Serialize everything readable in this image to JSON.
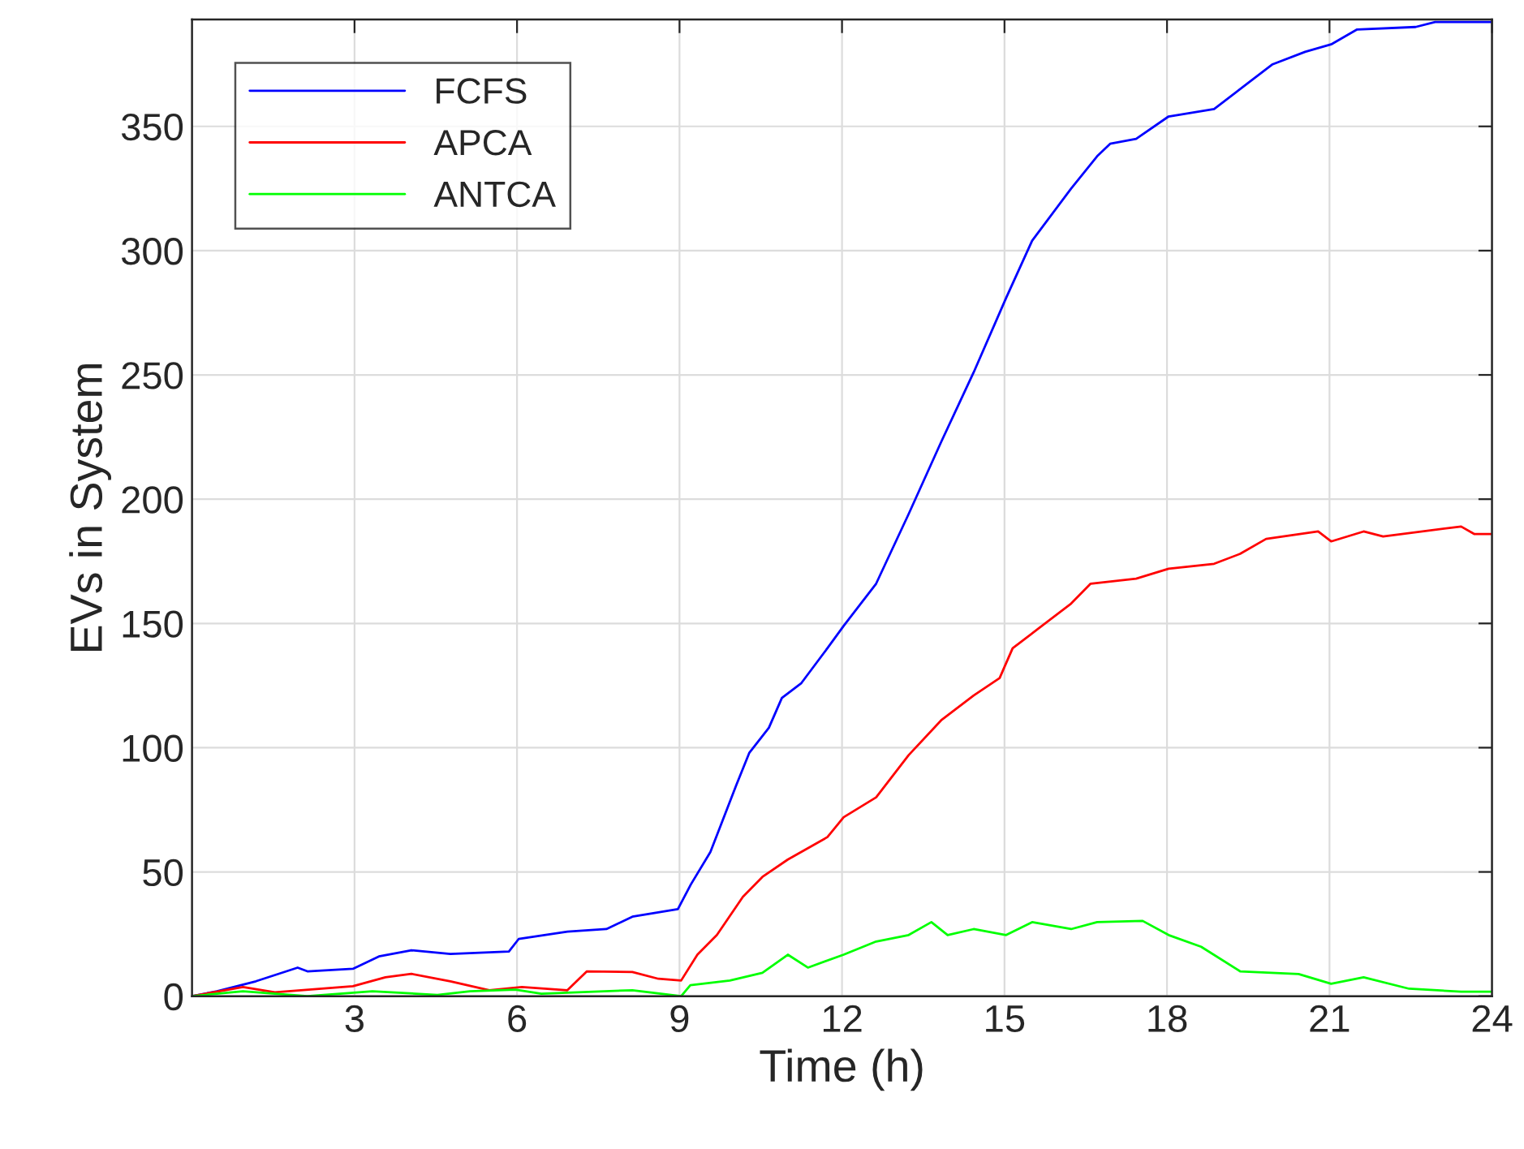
{
  "chart_data": {
    "type": "line",
    "xlabel": "Time (h)",
    "ylabel": "EVs in System",
    "xlim": [
      0,
      24
    ],
    "ylim": [
      0,
      393
    ],
    "xticks": [
      3,
      6,
      9,
      12,
      15,
      18,
      21,
      24
    ],
    "yticks": [
      0,
      50,
      100,
      150,
      200,
      250,
      300,
      350
    ],
    "grid": true,
    "legend": "top left",
    "series": [
      {
        "name": "FCFS",
        "color": "#0000ff",
        "x": [
          0,
          0.46,
          1.18,
          1.95,
          2.13,
          2.97,
          3.45,
          4.05,
          4.77,
          5.85,
          6.03,
          6.93,
          7.65,
          8.13,
          8.97,
          9.21,
          9.57,
          10.05,
          10.29,
          10.65,
          10.89,
          11.25,
          11.73,
          12.03,
          12.63,
          13.23,
          13.83,
          14.43,
          15.03,
          15.51,
          16.23,
          16.71,
          16.95,
          17.43,
          18.03,
          18.87,
          19.47,
          19.95,
          20.55,
          21.03,
          21.51,
          22.59,
          22.95,
          24
        ],
        "values": [
          0,
          2,
          6,
          11.5,
          10,
          11,
          16,
          18.5,
          17,
          18,
          23,
          26,
          27,
          32,
          35,
          45,
          58,
          85,
          98,
          108,
          120,
          126,
          140,
          149,
          166,
          194,
          223,
          251,
          281,
          304,
          325,
          338,
          343,
          345,
          354,
          357,
          367,
          375,
          380,
          383,
          389,
          390,
          392,
          392
        ]
      },
      {
        "name": "APCA",
        "color": "#ff0000",
        "x": [
          0,
          0.94,
          1.53,
          2.97,
          3.57,
          4.05,
          4.77,
          5.49,
          6.09,
          6.93,
          7.29,
          8.13,
          8.61,
          9.03,
          9.33,
          9.69,
          10.17,
          10.53,
          11.0,
          11.73,
          12.03,
          12.63,
          13.23,
          13.83,
          14.43,
          14.91,
          15.15,
          15.63,
          16.23,
          16.59,
          17.43,
          18.03,
          18.87,
          19.35,
          19.83,
          20.79,
          21.03,
          21.63,
          21.99,
          23.43,
          23.67,
          24
        ],
        "values": [
          0,
          3.7,
          1.6,
          4,
          7.6,
          9,
          6,
          2.4,
          3.7,
          2.4,
          10,
          9.7,
          7,
          6.3,
          16.7,
          24.6,
          40,
          48,
          55,
          64,
          72,
          80,
          97,
          111,
          121,
          128,
          140,
          148,
          158,
          166,
          168,
          172,
          174,
          178,
          184,
          187,
          183,
          187,
          185,
          189,
          186,
          186
        ]
      },
      {
        "name": "ANTCA",
        "color": "#00ff00",
        "x": [
          0,
          0.94,
          2.13,
          3.33,
          4.53,
          5.13,
          5.97,
          6.45,
          8.13,
          9.03,
          9.2,
          9.93,
          10.53,
          11.0,
          11.37,
          12.03,
          12.63,
          13.23,
          13.65,
          13.95,
          14.43,
          15.03,
          15.51,
          16.23,
          16.71,
          17.55,
          18.03,
          18.63,
          19.35,
          20.43,
          21.03,
          21.63,
          22.47,
          23.43,
          24
        ],
        "values": [
          0,
          2,
          0,
          2,
          0.5,
          2,
          2.6,
          1,
          2.4,
          0,
          4.4,
          6.3,
          9.4,
          16.7,
          11.5,
          16.7,
          22,
          24.6,
          29.8,
          24.6,
          27,
          24.6,
          29.8,
          27,
          29.8,
          30.3,
          24.6,
          19.9,
          10,
          8.9,
          5,
          7.6,
          3,
          1.8,
          1.8
        ]
      }
    ]
  }
}
